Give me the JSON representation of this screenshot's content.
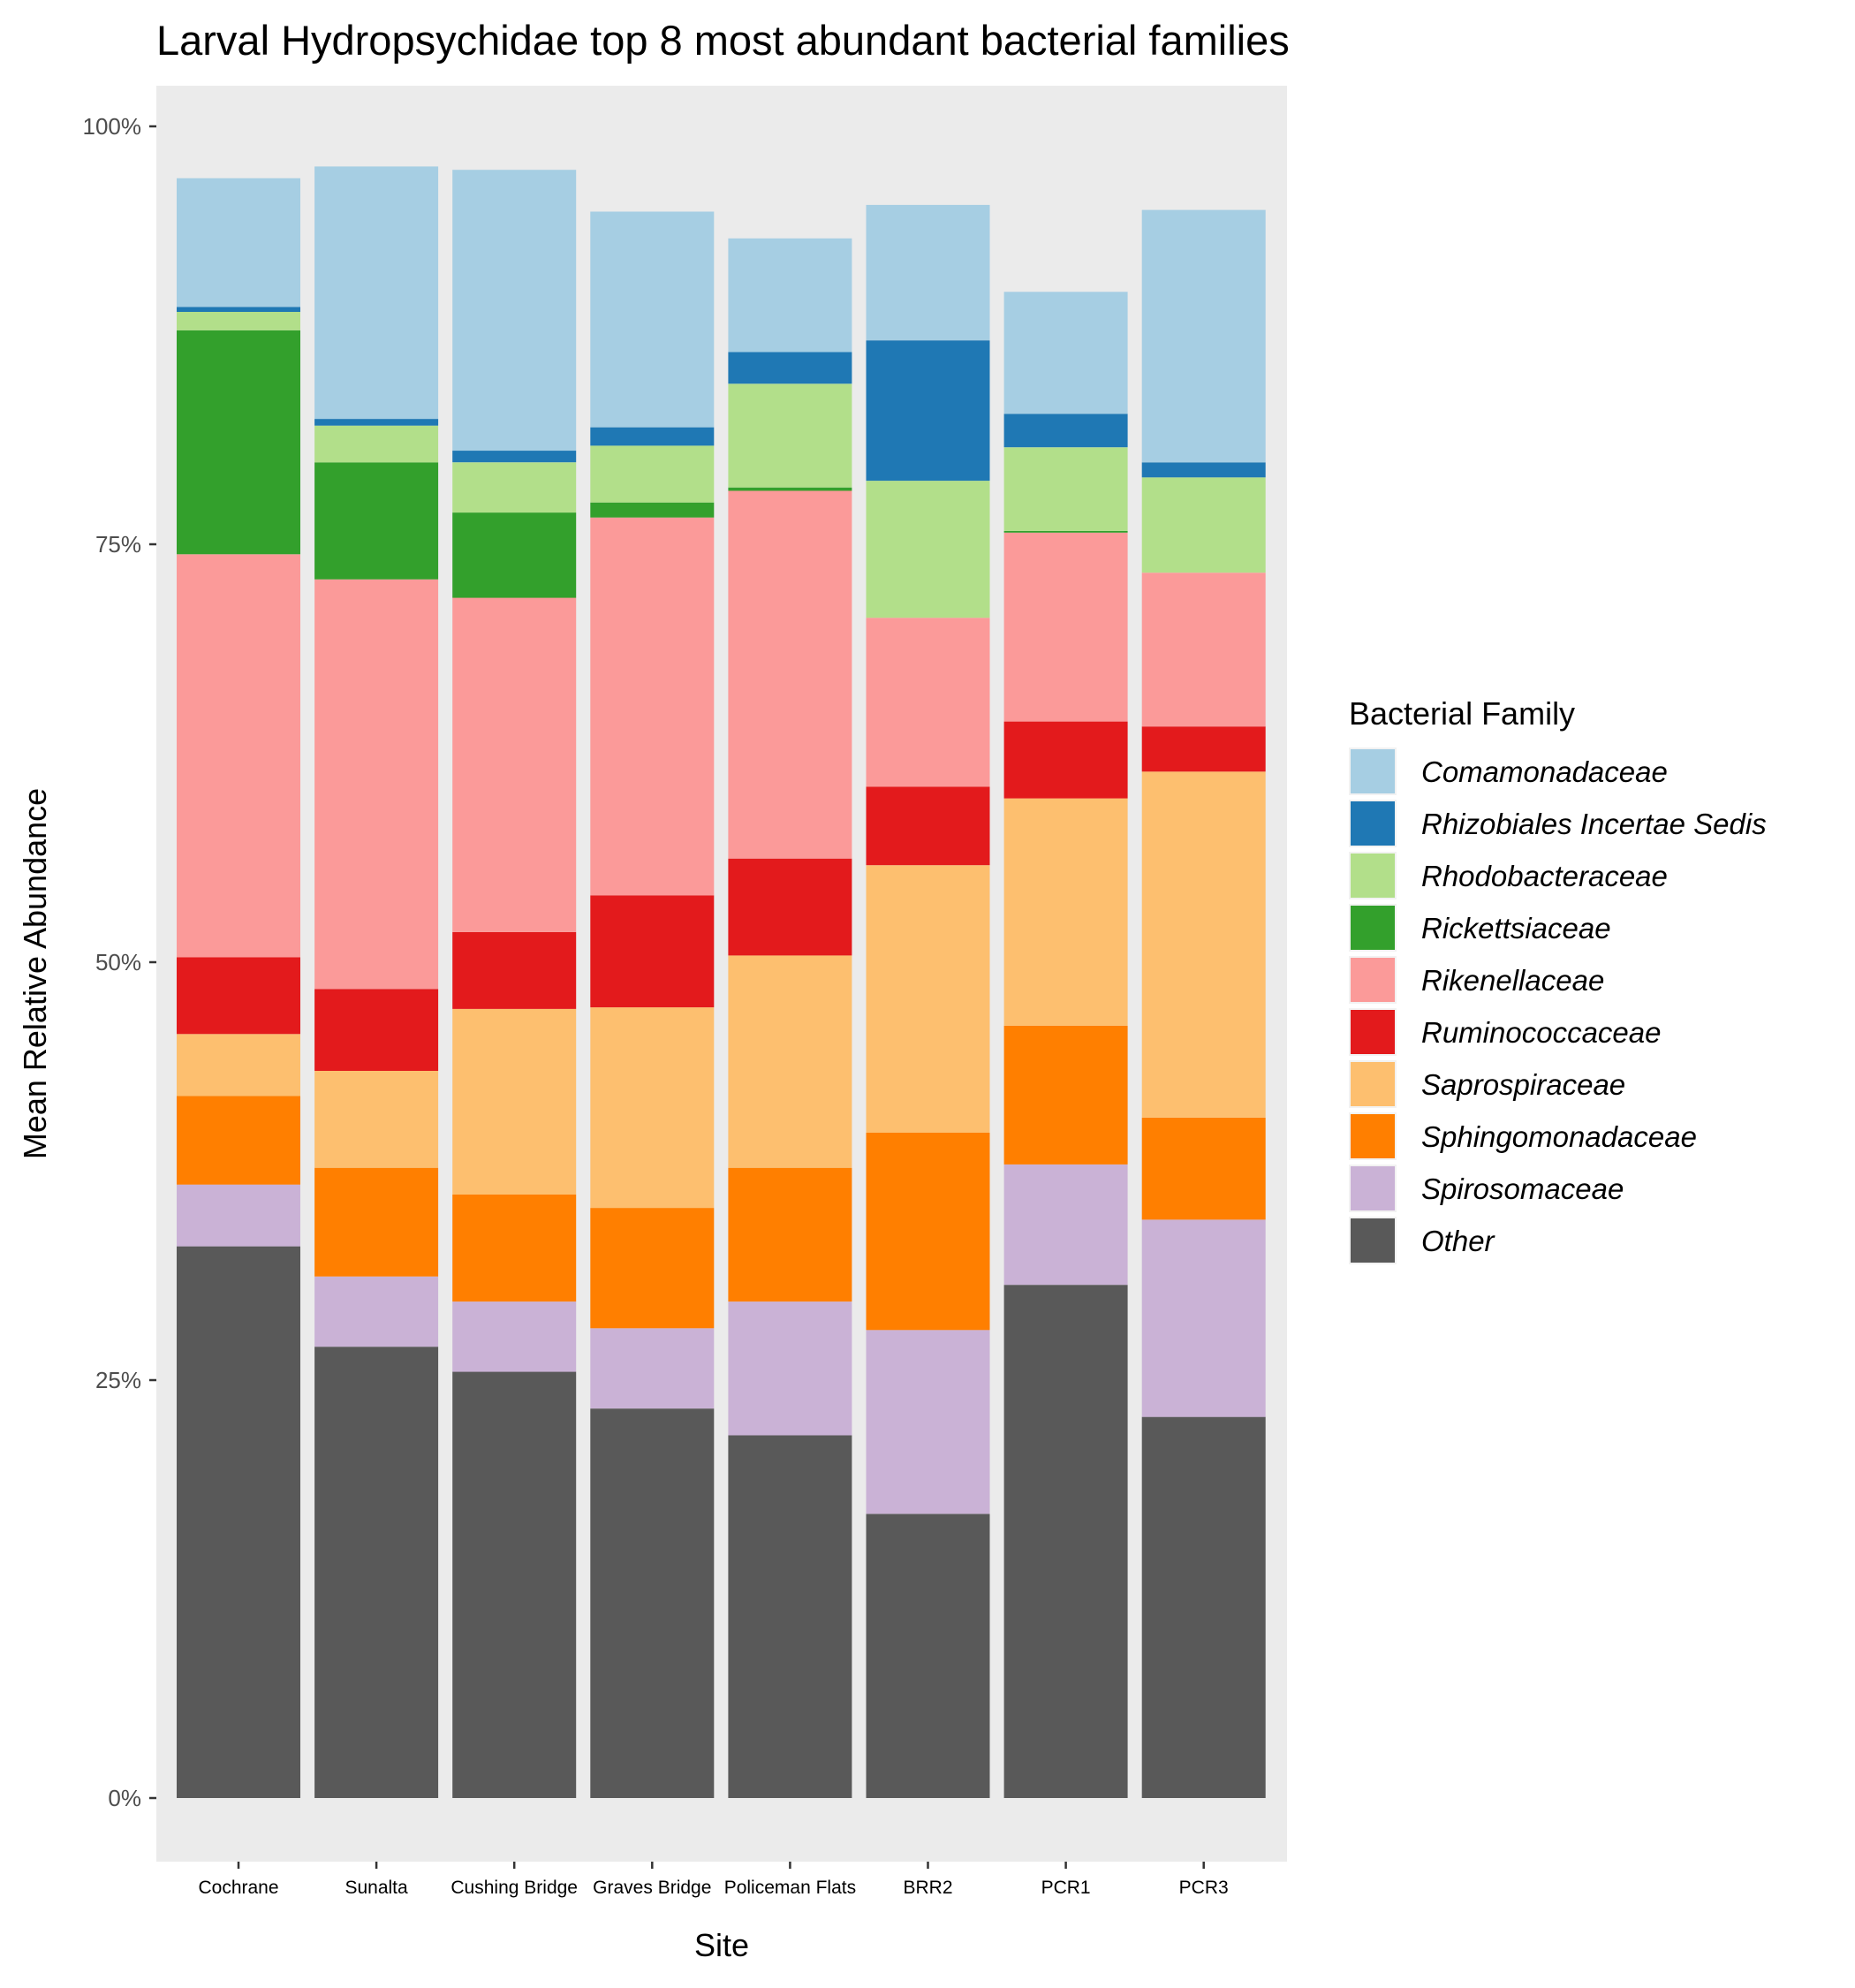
{
  "chart_data": {
    "type": "bar",
    "stacked": true,
    "title": "Larval Hydropsychidae top 8 most abundant bacterial families",
    "xlabel": "Site",
    "ylabel": "Mean Relative Abundance",
    "ylim": [
      0,
      1
    ],
    "ytick_values": [
      0,
      0.25,
      0.5,
      0.75,
      1.0
    ],
    "ytick_labels": [
      "0%",
      "25%",
      "50%",
      "75%",
      "100%"
    ],
    "grid": false,
    "legend_position": "right",
    "legend_title": "Bacterial Family",
    "categories": [
      "Cochrane",
      "Sunalta",
      "Cushing Bridge",
      "Graves Bridge",
      "Policeman Flats",
      "BRR2",
      "PCR1",
      "PCR3"
    ],
    "series": [
      {
        "name": "Other",
        "color": "#595959",
        "values": [
          0.33,
          0.27,
          0.255,
          0.233,
          0.217,
          0.17,
          0.307,
          0.228
        ]
      },
      {
        "name": "Spirosomaceae",
        "color": "#CAB2D6",
        "values": [
          0.037,
          0.042,
          0.042,
          0.048,
          0.08,
          0.11,
          0.072,
          0.118
        ]
      },
      {
        "name": "Sphingomonadaceae",
        "color": "#FF7F00",
        "values": [
          0.053,
          0.065,
          0.064,
          0.072,
          0.08,
          0.118,
          0.083,
          0.061
        ]
      },
      {
        "name": "Saprospiraceae",
        "color": "#FDBF6F",
        "values": [
          0.037,
          0.058,
          0.111,
          0.12,
          0.127,
          0.16,
          0.136,
          0.207
        ]
      },
      {
        "name": "Ruminococcaceae",
        "color": "#E31A1C",
        "values": [
          0.046,
          0.049,
          0.046,
          0.067,
          0.058,
          0.047,
          0.046,
          0.027
        ]
      },
      {
        "name": "Rikenellaceae",
        "color": "#FB9A99",
        "values": [
          0.241,
          0.245,
          0.2,
          0.226,
          0.22,
          0.101,
          0.113,
          0.092
        ]
      },
      {
        "name": "Rickettsiaceae",
        "color": "#33A02C",
        "values": [
          0.134,
          0.07,
          0.051,
          0.009,
          0.002,
          0.0,
          0.001,
          0.0
        ]
      },
      {
        "name": "Rhodobacteraceae",
        "color": "#B2DF8A",
        "values": [
          0.011,
          0.022,
          0.03,
          0.034,
          0.062,
          0.082,
          0.05,
          0.057
        ]
      },
      {
        "name": "Rhizobiales Incertae Sedis",
        "color": "#1F78B4",
        "values": [
          0.003,
          0.004,
          0.007,
          0.011,
          0.019,
          0.084,
          0.02,
          0.009
        ]
      },
      {
        "name": "Comamonadaceae",
        "color": "#A6CEE3",
        "values": [
          0.077,
          0.151,
          0.168,
          0.129,
          0.068,
          0.081,
          0.073,
          0.151
        ]
      }
    ]
  }
}
